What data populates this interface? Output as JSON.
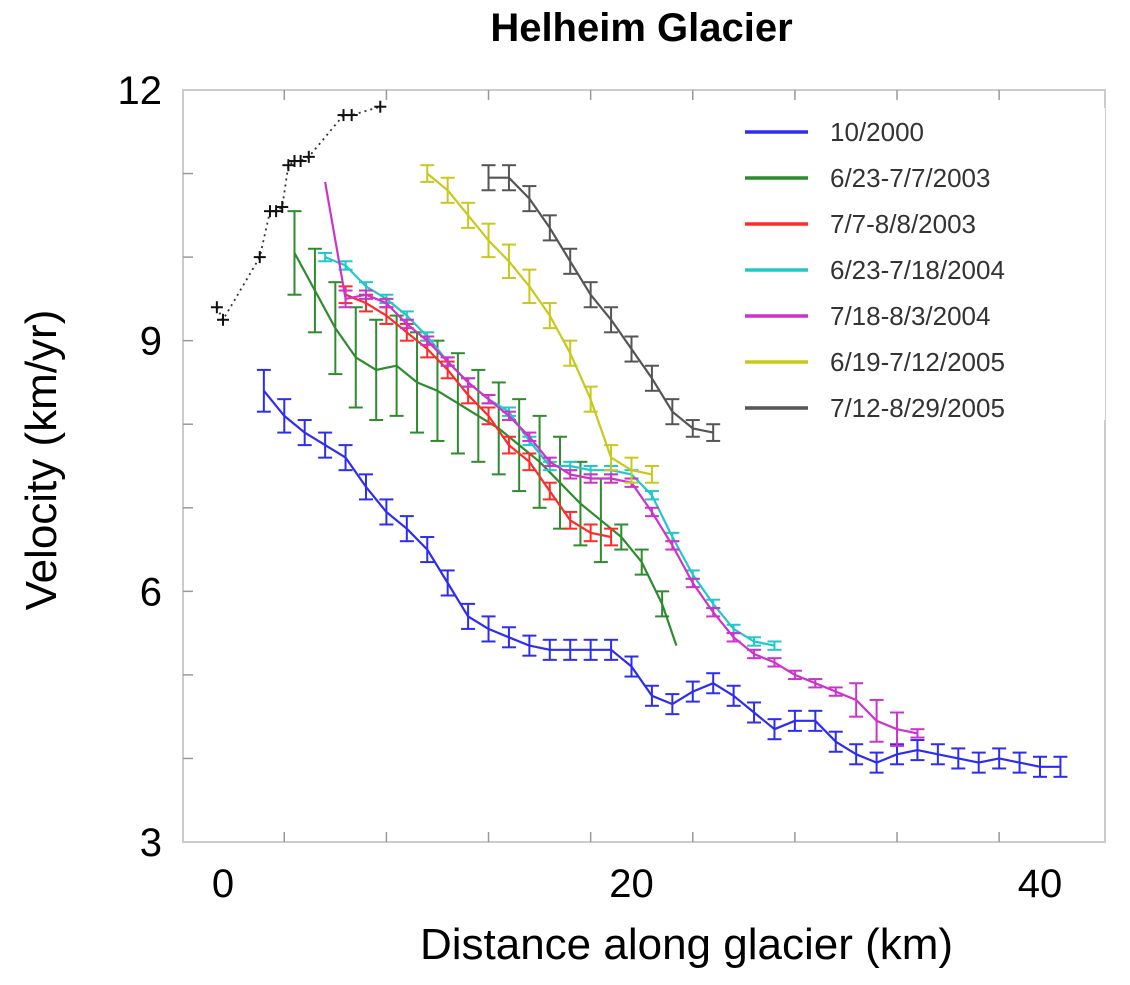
{
  "chart_data": {
    "type": "line",
    "title": "Helheim Glacier",
    "xlabel": "Distance along glacier (km)",
    "ylabel": "Velocity (km/yr)",
    "xlim": [
      -2,
      42
    ],
    "ylim": [
      3,
      12
    ],
    "xticks": [
      0,
      20,
      40
    ],
    "yticks": [
      3,
      6,
      9,
      12
    ],
    "grid": false,
    "legend_position": "top-right",
    "series": [
      {
        "name": "10/2000",
        "color": "#2d2df2",
        "x": [
          2,
          3,
          4,
          5,
          6,
          7,
          8,
          9,
          10,
          11,
          12,
          13,
          14,
          15,
          16,
          17,
          18,
          19,
          20,
          21,
          22,
          23,
          24,
          25,
          26,
          27,
          28,
          29,
          30,
          31,
          32,
          33,
          34,
          35,
          36,
          37,
          38,
          39,
          40,
          41
        ],
        "y": [
          8.4,
          8.1,
          7.9,
          7.75,
          7.6,
          7.25,
          6.95,
          6.75,
          6.5,
          6.1,
          5.7,
          5.55,
          5.45,
          5.35,
          5.3,
          5.3,
          5.3,
          5.3,
          5.1,
          4.75,
          4.65,
          4.8,
          4.9,
          4.75,
          4.55,
          4.35,
          4.45,
          4.45,
          4.2,
          4.05,
          3.95,
          4.05,
          4.1,
          4.05,
          4.0,
          3.95,
          4.0,
          3.95,
          3.9,
          3.9
        ],
        "err": [
          0.25,
          0.2,
          0.15,
          0.15,
          0.15,
          0.15,
          0.15,
          0.15,
          0.15,
          0.15,
          0.15,
          0.15,
          0.12,
          0.12,
          0.12,
          0.12,
          0.12,
          0.12,
          0.12,
          0.12,
          0.12,
          0.12,
          0.12,
          0.12,
          0.12,
          0.12,
          0.12,
          0.12,
          0.12,
          0.12,
          0.12,
          0.12,
          0.12,
          0.12,
          0.12,
          0.12,
          0.12,
          0.12,
          0.12,
          0.12
        ]
      },
      {
        "name": "6/23-7/7/2003",
        "color": "#2e8b2e",
        "x": [
          3.5,
          4.5,
          5.5,
          6.5,
          7.5,
          8.5,
          9.5,
          10.5,
          11.5,
          12.5,
          13.5,
          14.5,
          15.5,
          16.5,
          17.5,
          18.5,
          19.5,
          20.5,
          21.5,
          22.2
        ],
        "y": [
          10.05,
          9.6,
          9.15,
          8.8,
          8.65,
          8.7,
          8.5,
          8.4,
          8.25,
          8.1,
          7.95,
          7.75,
          7.55,
          7.3,
          7.05,
          6.85,
          6.65,
          6.35,
          5.85,
          5.35
        ],
        "err": [
          0.5,
          0.5,
          0.55,
          0.6,
          0.6,
          0.6,
          0.6,
          0.6,
          0.6,
          0.55,
          0.55,
          0.55,
          0.55,
          0.55,
          0.5,
          0.5,
          0.15,
          0.15,
          0.15,
          0
        ]
      },
      {
        "name": "7/7-8/8/2003",
        "color": "#ff2a2a",
        "x": [
          6,
          7,
          8,
          9,
          10,
          11,
          12,
          13,
          14,
          15,
          16,
          17,
          18,
          19
        ],
        "y": [
          9.55,
          9.45,
          9.3,
          9.1,
          8.9,
          8.65,
          8.35,
          8.1,
          7.75,
          7.55,
          7.2,
          6.85,
          6.7,
          6.65
        ],
        "err": [
          0.1,
          0.1,
          0.1,
          0.1,
          0.1,
          0.1,
          0.1,
          0.1,
          0.1,
          0.1,
          0.1,
          0.1,
          0.1,
          0.1
        ]
      },
      {
        "name": "6/23-7/18/2004",
        "color": "#22c8c8",
        "x": [
          5,
          6,
          7,
          8,
          9,
          10,
          11,
          12,
          13,
          14,
          15,
          16,
          17,
          18,
          19,
          20,
          21,
          22,
          23,
          24,
          25,
          26,
          27
        ],
        "y": [
          10.0,
          9.9,
          9.65,
          9.5,
          9.3,
          9.05,
          8.75,
          8.5,
          8.3,
          8.15,
          7.8,
          7.5,
          7.5,
          7.45,
          7.45,
          7.4,
          7.15,
          6.65,
          6.2,
          5.85,
          5.55,
          5.4,
          5.35
        ],
        "err": [
          0.05,
          0.05,
          0.05,
          0.05,
          0.05,
          0.05,
          0.05,
          0.05,
          0.05,
          0.05,
          0.05,
          0.05,
          0.05,
          0.05,
          0.05,
          0.05,
          0.05,
          0.05,
          0.05,
          0.05,
          0.05,
          0.05,
          0.05
        ]
      },
      {
        "name": "7/18-8/3/2004",
        "color": "#cc33cc",
        "x": [
          5,
          6,
          7,
          8,
          9,
          10,
          11,
          12,
          13,
          14,
          15,
          16,
          17,
          18,
          19,
          20,
          21,
          22,
          23,
          24,
          25,
          26,
          27,
          28,
          29,
          30,
          31,
          32,
          33,
          34
        ],
        "y": [
          10.9,
          9.5,
          9.55,
          9.45,
          9.2,
          9.0,
          8.75,
          8.5,
          8.3,
          8.1,
          7.85,
          7.55,
          7.4,
          7.35,
          7.35,
          7.3,
          6.95,
          6.55,
          6.1,
          5.75,
          5.45,
          5.25,
          5.15,
          5.0,
          4.9,
          4.8,
          4.7,
          4.45,
          4.35,
          4.3
        ],
        "err": [
          0,
          0.1,
          0.05,
          0.05,
          0.05,
          0.05,
          0.05,
          0.05,
          0.05,
          0.05,
          0.05,
          0.05,
          0.05,
          0.05,
          0.05,
          0.05,
          0.05,
          0.05,
          0.05,
          0.05,
          0.05,
          0.05,
          0.05,
          0.05,
          0.05,
          0.05,
          0.2,
          0.25,
          0.2,
          0.05
        ]
      },
      {
        "name": "6/19-7/12/2005",
        "color": "#c8c81e",
        "x": [
          10,
          11,
          12,
          13,
          14,
          15,
          16,
          17,
          18,
          19,
          20,
          21
        ],
        "y": [
          11.0,
          10.8,
          10.5,
          10.2,
          9.95,
          9.65,
          9.3,
          8.85,
          8.3,
          7.6,
          7.45,
          7.4
        ],
        "err": [
          0.1,
          0.15,
          0.15,
          0.2,
          0.2,
          0.2,
          0.15,
          0.15,
          0.15,
          0.15,
          0.15,
          0.1
        ]
      },
      {
        "name": "7/12-8/29/2005",
        "color": "#555555",
        "x": [
          13,
          14,
          15,
          16,
          17,
          18,
          19,
          20,
          21,
          22,
          23,
          24
        ],
        "y": [
          10.95,
          10.95,
          10.7,
          10.35,
          9.95,
          9.55,
          9.25,
          8.9,
          8.55,
          8.15,
          7.95,
          7.9
        ],
        "err": [
          0.15,
          0.15,
          0.15,
          0.15,
          0.15,
          0.15,
          0.15,
          0.15,
          0.15,
          0.15,
          0.1,
          0.1
        ]
      },
      {
        "name": "",
        "color": "#000000",
        "style": "dotted-cross",
        "x": [
          -0.3,
          0,
          1.8,
          2.3,
          2.6,
          2.9,
          3.2,
          3.5,
          3.8,
          4.2,
          5.9,
          6.3,
          7.7
        ],
        "y": [
          9.4,
          9.25,
          10.0,
          10.55,
          10.55,
          10.6,
          11.1,
          11.15,
          11.15,
          11.2,
          11.7,
          11.7,
          11.8
        ]
      }
    ]
  }
}
